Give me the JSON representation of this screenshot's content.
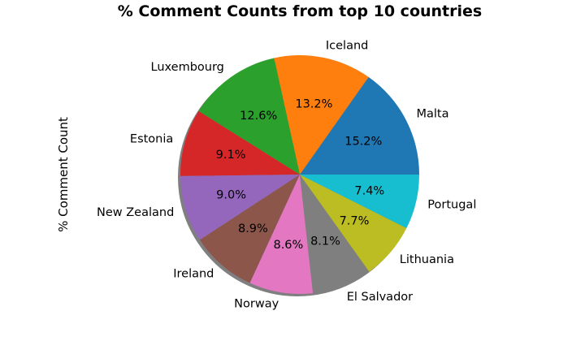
{
  "chart_data": {
    "type": "pie",
    "title": "% Comment Counts from top 10 countries",
    "ylabel": "% Comment Count",
    "labels": [
      "Malta",
      "Iceland",
      "Luxembourg",
      "Estonia",
      "New Zealand",
      "Ireland",
      "Norway",
      "El Salvador",
      "Lithuania",
      "Portugal"
    ],
    "values": [
      15.2,
      13.2,
      12.6,
      9.1,
      9.0,
      8.9,
      8.6,
      8.1,
      7.7,
      7.4
    ],
    "value_labels": [
      "15.2%",
      "13.2%",
      "12.6%",
      "9.1%",
      "9.0%",
      "8.9%",
      "8.6%",
      "8.1%",
      "7.7%",
      "7.4%"
    ],
    "colors": [
      "#1f77b4",
      "#ff7f0e",
      "#2ca02c",
      "#d62728",
      "#9467bd",
      "#8c564b",
      "#e377c2",
      "#7f7f7f",
      "#bcbd22",
      "#17becf"
    ],
    "start_angle_deg": 0,
    "direction": "counterclockwise",
    "shadow": true,
    "legend": "none"
  }
}
